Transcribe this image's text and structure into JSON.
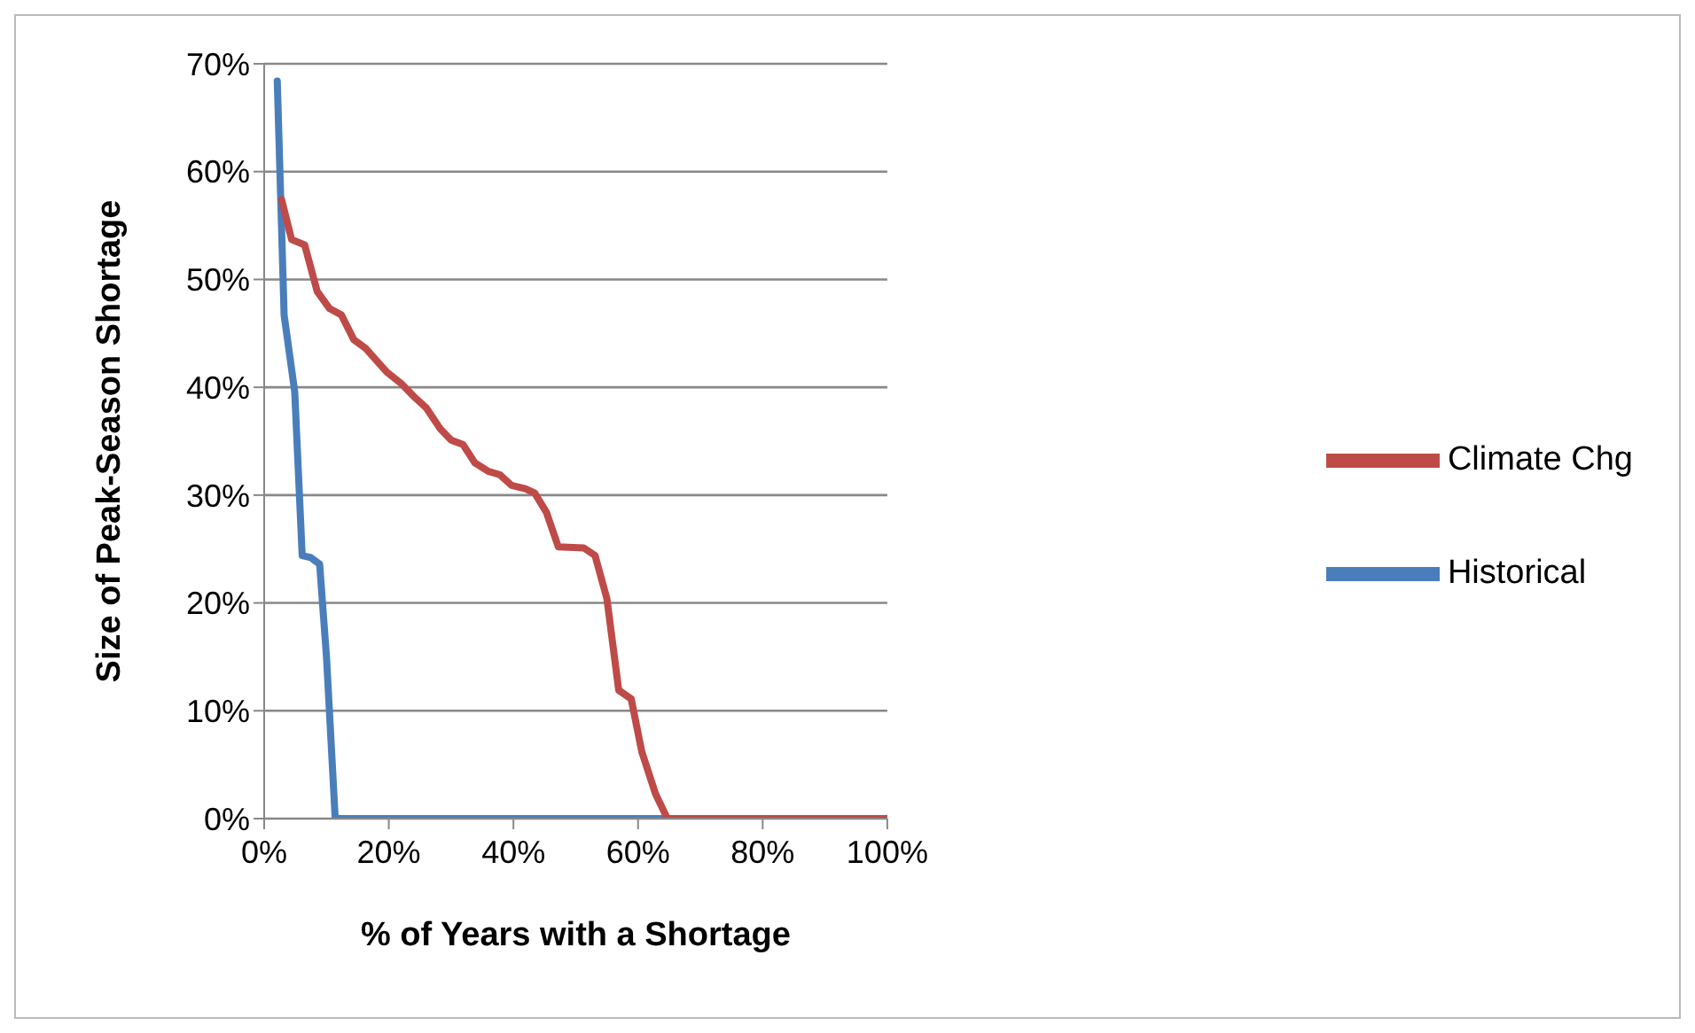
{
  "chart_data": {
    "type": "line",
    "xlabel": "% of Years with a Shortage",
    "ylabel": "Size of Peak-Season Shortage",
    "xlim": [
      0,
      100
    ],
    "xticks": [
      {
        "value": 0,
        "label": "0%"
      },
      {
        "value": 20,
        "label": "20%"
      },
      {
        "value": 40,
        "label": "40%"
      },
      {
        "value": 60,
        "label": "60%"
      },
      {
        "value": 80,
        "label": "80%"
      },
      {
        "value": 100,
        "label": "100%"
      }
    ],
    "ylim": [
      0,
      70
    ],
    "yticks": [
      {
        "value": 0,
        "label": "0%"
      },
      {
        "value": 10,
        "label": "10%"
      },
      {
        "value": 20,
        "label": "20%"
      },
      {
        "value": 30,
        "label": "30%"
      },
      {
        "value": 40,
        "label": "40%"
      },
      {
        "value": 50,
        "label": "50%"
      },
      {
        "value": 60,
        "label": "60%"
      },
      {
        "value": 70,
        "label": "70%"
      }
    ],
    "grid": "y",
    "legend": "right",
    "marker": "none",
    "line_style": "solid",
    "series": [
      {
        "name": "Historical",
        "color": "#4a7ebb",
        "x": [
          2.1,
          3.2,
          4.9,
          6.1,
          7.5,
          8.9,
          10.0,
          11.4,
          64.7
        ],
        "values": [
          68.4,
          46.7,
          39.6,
          24.4,
          24.2,
          23.6,
          15.0,
          0,
          0
        ]
      },
      {
        "name": "Climate Chg",
        "color": "#be4b48",
        "x": [
          2.8,
          4.4,
          6.5,
          8.5,
          10.5,
          12.4,
          14.4,
          16.3,
          19.7,
          21.9,
          24.1,
          26.0,
          28.2,
          30.0,
          31.9,
          33.8,
          36.0,
          37.8,
          39.7,
          41.9,
          43.4,
          45.3,
          47.2,
          51.3,
          53.1,
          55.0,
          56.9,
          58.9,
          60.6,
          62.8,
          64.7,
          100
        ],
        "values": [
          57.4,
          53.7,
          53.2,
          48.9,
          47.3,
          46.7,
          44.4,
          43.6,
          41.4,
          40.4,
          39.1,
          38.1,
          36.2,
          35.1,
          34.7,
          33.0,
          32.2,
          31.9,
          30.9,
          30.6,
          30.2,
          28.4,
          25.2,
          25.1,
          24.4,
          20.4,
          11.9,
          11.1,
          6.2,
          2.3,
          0,
          0
        ]
      }
    ]
  }
}
